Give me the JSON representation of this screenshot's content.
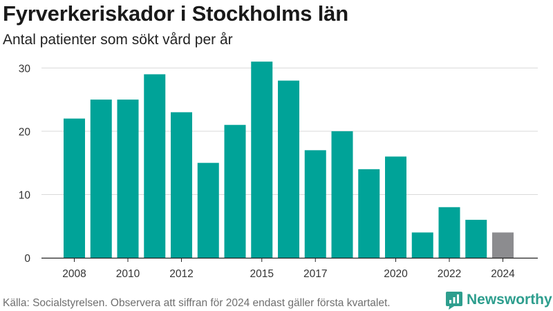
{
  "header": {
    "title": "Fyrverkeriskador i Stockholms län",
    "subtitle": "Antal patienter som sökt vård per år"
  },
  "footer": {
    "source": "Källa: Socialstyrelsen. Observera att siffran för 2024 endast gäller första kvartalet.",
    "brand": "Newsworthy"
  },
  "colors": {
    "bar": "#00a398",
    "bar_partial": "#8c8c8f",
    "grid": "#d9d9d9",
    "brand": "#2e9e8e"
  },
  "chart_data": {
    "type": "bar",
    "categories": [
      "2008",
      "2009",
      "2010",
      "2011",
      "2012",
      "2013",
      "2014",
      "2015",
      "2016",
      "2017",
      "2018",
      "2019",
      "2020",
      "2021",
      "2022",
      "2023",
      "2024"
    ],
    "values": [
      22,
      25,
      25,
      29,
      23,
      15,
      21,
      31,
      28,
      17,
      20,
      14,
      16,
      4,
      8,
      6,
      4
    ],
    "highlight": {
      "2024": "partial"
    },
    "x_tick_labels": [
      "2008",
      "2010",
      "2012",
      "2015",
      "2017",
      "2020",
      "2022",
      "2024"
    ],
    "y_ticks": [
      0,
      10,
      20,
      30
    ],
    "ylim": [
      0,
      32
    ],
    "grid": true,
    "legend": "none",
    "xlabel": "",
    "ylabel": ""
  }
}
